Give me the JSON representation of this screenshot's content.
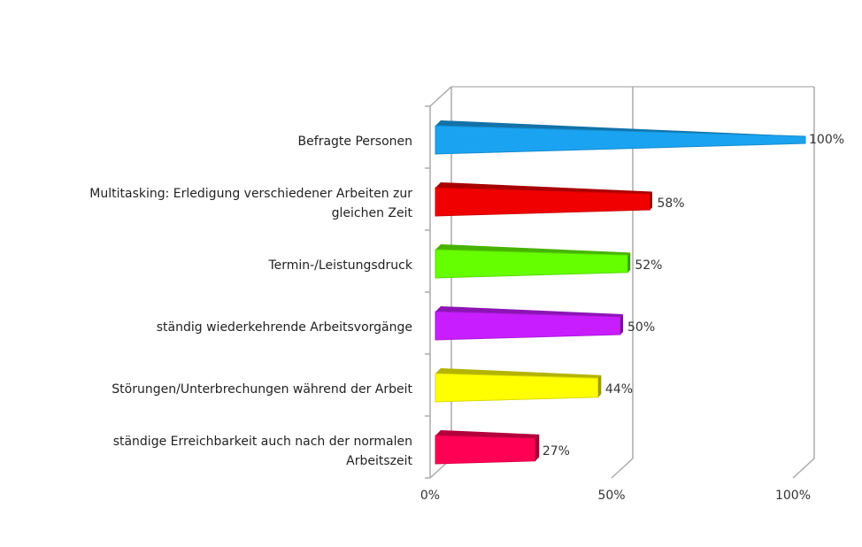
{
  "chart_data": {
    "type": "bar",
    "orientation": "horizontal",
    "style": "3d-pyramid",
    "categories": [
      "Befragte Personen",
      "Multitasking: Erledigung verschiedener Arbeiten zur gleichen Zeit",
      "Termin-/Leistungsdruck",
      "ständig wiederkehrende Arbeitsvorgänge",
      "Störungen/Unterbrechungen während der Arbeit",
      "ständige Erreichbarkeit auch nach der normalen Arbeitszeit"
    ],
    "values": [
      100,
      58,
      52,
      50,
      44,
      27
    ],
    "data_labels": [
      "100%",
      "58%",
      "52%",
      "50%",
      "44%",
      "27%"
    ],
    "colors": [
      "#1aa3f0",
      "#f00000",
      "#66ff00",
      "#c81eff",
      "#ffff00",
      "#ff0055"
    ],
    "xlim": [
      0,
      100
    ],
    "x_ticks": [
      "0%",
      "50%",
      "100%"
    ],
    "grid": true,
    "legend": "none"
  }
}
